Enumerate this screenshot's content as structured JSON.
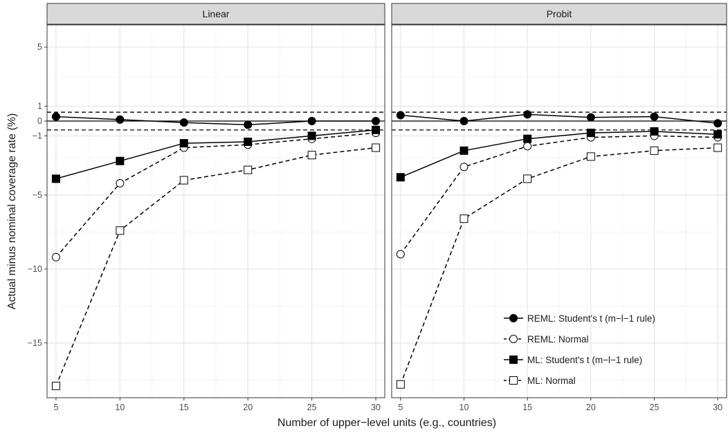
{
  "chart_data": {
    "type": "line",
    "xlabel": "Number of upper−level units (e.g., countries)",
    "ylabel": "Actual minus nominal coverage rate (%)",
    "x": [
      5,
      10,
      15,
      20,
      25,
      30
    ],
    "xlim": [
      4.3,
      30.7
    ],
    "ylim": [
      -18.7,
      6.5
    ],
    "yticks": [
      5,
      1,
      0,
      -1,
      -5,
      -10,
      -15
    ],
    "ytick_labels": [
      "5",
      "1",
      "0",
      "−1",
      "−5",
      "−10",
      "−15"
    ],
    "xticks": [
      5,
      10,
      15,
      20,
      25,
      30
    ],
    "xtick_labels": [
      "5",
      "10",
      "15",
      "20",
      "25",
      "30"
    ],
    "reference_lines": {
      "solid": [
        0
      ],
      "dashed": [
        0.6,
        -0.6
      ]
    },
    "grid": true,
    "legend_position": "bottom-right",
    "legend": [
      {
        "label": "REML: Student's t (m−l−1 rule)",
        "marker": "filled-circle",
        "line": "solid"
      },
      {
        "label": "REML: Normal",
        "marker": "open-circle",
        "line": "dashed"
      },
      {
        "label": "ML: Student's t (m−l−1 rule)",
        "marker": "filled-square",
        "line": "solid"
      },
      {
        "label": "ML: Normal",
        "marker": "open-square",
        "line": "dashed"
      }
    ],
    "panels": [
      {
        "title": "Linear",
        "series": [
          {
            "name": "REML: Student's t (m−l−1 rule)",
            "values": [
              0.3,
              0.1,
              -0.1,
              -0.25,
              0.0,
              0.0
            ]
          },
          {
            "name": "REML: Normal",
            "values": [
              -9.2,
              -4.2,
              -1.8,
              -1.6,
              -1.2,
              -0.8
            ]
          },
          {
            "name": "ML: Student's t (m−l−1 rule)",
            "values": [
              -3.9,
              -2.7,
              -1.5,
              -1.4,
              -1.0,
              -0.6
            ]
          },
          {
            "name": "ML: Normal",
            "values": [
              -17.9,
              -7.4,
              -4.0,
              -3.3,
              -2.3,
              -1.8
            ]
          }
        ]
      },
      {
        "title": "Probit",
        "series": [
          {
            "name": "REML: Student's t (m−l−1 rule)",
            "values": [
              0.4,
              0.0,
              0.45,
              0.25,
              0.3,
              -0.15
            ]
          },
          {
            "name": "REML: Normal",
            "values": [
              -9.0,
              -3.1,
              -1.7,
              -1.1,
              -1.0,
              -1.1
            ]
          },
          {
            "name": "ML: Student's t (m−l−1 rule)",
            "values": [
              -3.8,
              -2.0,
              -1.2,
              -0.8,
              -0.7,
              -0.9
            ]
          },
          {
            "name": "ML: Normal",
            "values": [
              -17.8,
              -6.6,
              -3.9,
              -2.4,
              -2.0,
              -1.8
            ]
          }
        ]
      }
    ]
  }
}
